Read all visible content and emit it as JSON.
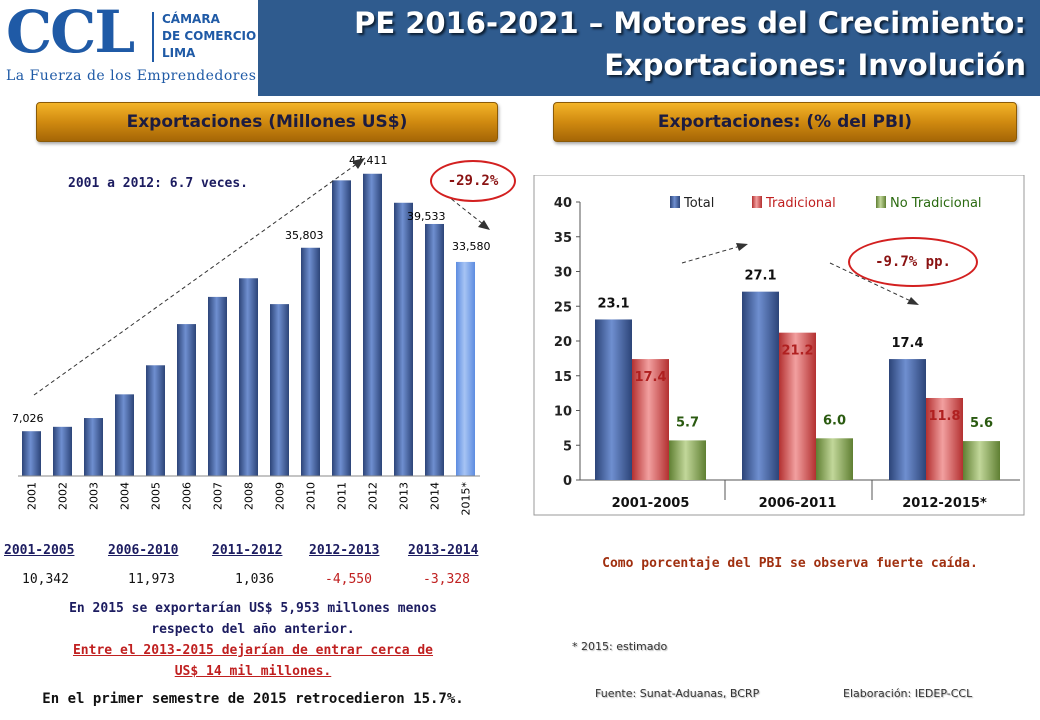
{
  "header": {
    "logo_text": "CCL",
    "logo_lines": [
      "CÁMARA",
      "DE COMERCIO",
      "LIMA"
    ],
    "logo_tagline": "La Fuerza de los Emprendedores",
    "title_line1": "PE 2016-2021 – Motores del Crecimiento:",
    "title_line2": "Exportaciones: Involución"
  },
  "colors": {
    "header": "#2f5b8e",
    "bar_blue": "#4a65a6",
    "bar_red": "#d34b4b",
    "bar_green": "#8aae5a",
    "accent_red": "#d32020"
  },
  "left": {
    "pill_title": "Exportaciones (Millones US$)",
    "note_growth": "2001 a 2012: 6.7 veces.",
    "note_drop": "-29.2%",
    "periods": [
      "2001-2005",
      "2006-2010",
      "2011-2012",
      "2012-2013",
      "2013-2014"
    ],
    "period_values": [
      "10,342",
      "11,973",
      "1,036",
      "-4,550",
      "-3,328"
    ],
    "text1": "En 2015 se exportarían US$ 5,953 millones menos",
    "text2": "respecto del año anterior.",
    "text3": "Entre el 2013-2015 dejarían de entrar cerca de",
    "text4": "US$ 14 mil millones.",
    "text5": "En el primer semestre de 2015 retrocedieron 15.7%."
  },
  "right": {
    "pill_title": "Exportaciones: (% del PBI)",
    "note_drop": "-9.7% pp.",
    "caption": "Como porcentaje del PBI se observa fuerte caída.",
    "footnote": "* 2015: estimado",
    "source": "Fuente: Sunat-Aduanas, BCRP",
    "elaboration": "Elaboración: IEDEP-CCL"
  },
  "chart_data": [
    {
      "type": "bar",
      "title": "Exportaciones (Millones US$)",
      "categories": [
        "2001",
        "2002",
        "2003",
        "2004",
        "2005",
        "2006",
        "2007",
        "2008",
        "2009",
        "2010",
        "2011",
        "2012",
        "2013",
        "2014",
        "2015*"
      ],
      "values": [
        7026,
        7714,
        9091,
        12809,
        17368,
        23830,
        28094,
        31018,
        26962,
        35803,
        46376,
        47411,
        42861,
        39533,
        33580
      ],
      "labels": [
        "7,026",
        "",
        "",
        "",
        "",
        "",
        "",
        "",
        "",
        "35,803",
        "",
        "47,411",
        "",
        "39,533",
        "33,580"
      ],
      "ylim": [
        0,
        50000
      ],
      "xlabel": "",
      "ylabel": ""
    },
    {
      "type": "bar",
      "title": "Exportaciones: (% del PBI)",
      "categories": [
        "2001-2005",
        "2006-2011",
        "2012-2015*"
      ],
      "series": [
        {
          "name": "Total",
          "values": [
            23.1,
            27.1,
            17.4
          ],
          "labels": [
            "23.1",
            "27.1",
            "17.4"
          ]
        },
        {
          "name": "Tradicional",
          "values": [
            17.4,
            21.2,
            11.8
          ],
          "labels": [
            "17.4",
            "21.2",
            "11.8"
          ]
        },
        {
          "name": "No Tradicional",
          "values": [
            5.7,
            6.0,
            5.6
          ],
          "labels": [
            "5.7",
            "6.0",
            "5.6"
          ]
        }
      ],
      "yticks": [
        "0",
        "5",
        "10",
        "15",
        "20",
        "25",
        "30",
        "35",
        "40"
      ],
      "ylim": [
        0,
        40
      ],
      "legend": "top"
    }
  ]
}
